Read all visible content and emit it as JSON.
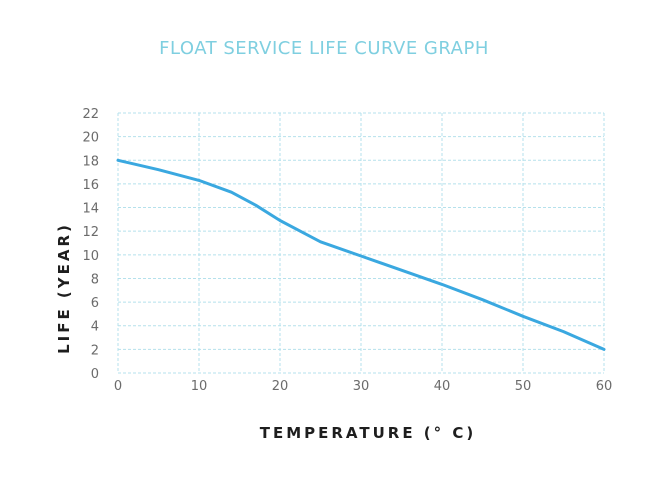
{
  "chart_data": {
    "type": "line",
    "title": "FLOAT SERVICE LIFE CURVE GRAPH",
    "xlabel": "TEMPERATURE (° C)",
    "ylabel": "LIFE (YEAR)",
    "xlim": [
      0,
      60
    ],
    "ylim": [
      0,
      22
    ],
    "x_ticks": [
      "0",
      "10",
      "20",
      "30",
      "40",
      "50",
      "60"
    ],
    "y_ticks": [
      "0",
      "2",
      "4",
      "6",
      "8",
      "10",
      "12",
      "14",
      "16",
      "18",
      "20",
      "22"
    ],
    "grid": true,
    "legend": "none",
    "series": [
      {
        "name": "Float service life",
        "color": "#3aa8e0",
        "x": [
          0,
          5,
          10,
          14,
          17,
          20,
          22.5,
          25,
          30,
          35,
          40,
          45,
          50,
          55,
          60
        ],
        "y": [
          18,
          17.2,
          16.3,
          15.3,
          14.2,
          12.9,
          12,
          11.1,
          9.9,
          8.7,
          7.5,
          6.2,
          4.8,
          3.5,
          2
        ]
      }
    ],
    "colors": {
      "title": "#7fcfe0",
      "grid": "#b5e1ec",
      "tick_text": "#6b6b6b",
      "axis_label": "#1e1e1e"
    }
  }
}
